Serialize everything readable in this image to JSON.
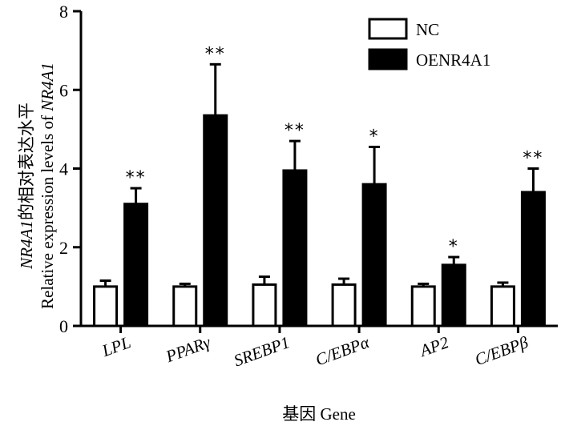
{
  "chart_data": {
    "type": "bar",
    "title": "",
    "categories": [
      "LPL",
      "PPARγ",
      "SREBP1",
      "C/EBPα",
      "AP2",
      "C/EBPβ"
    ],
    "series": [
      {
        "name": "NC",
        "fill": "#ffffff",
        "values": [
          1.0,
          1.0,
          1.05,
          1.05,
          1.0,
          1.0
        ],
        "errors": [
          0.15,
          0.07,
          0.2,
          0.15,
          0.07,
          0.1
        ]
      },
      {
        "name": "OENR4A1",
        "fill": "#000000",
        "values": [
          3.1,
          5.35,
          3.95,
          3.6,
          1.55,
          3.4
        ],
        "errors": [
          0.4,
          1.3,
          0.75,
          0.95,
          0.2,
          0.6
        ]
      }
    ],
    "significance": [
      "**",
      "**",
      "**",
      "*",
      "*",
      "**"
    ],
    "ylim": [
      0,
      8
    ],
    "yticks": [
      0,
      2,
      4,
      6,
      8
    ],
    "ylabel_line1_italic": "NR4A1",
    "ylabel_line1_rest": "的相对表达水平",
    "ylabel_line2_prefix": "Relative expression levels of ",
    "ylabel_line2_italic": "NR4A1",
    "xlabel_cn": "基因",
    "xlabel_en": "Gene",
    "legend_position": "top-right"
  }
}
